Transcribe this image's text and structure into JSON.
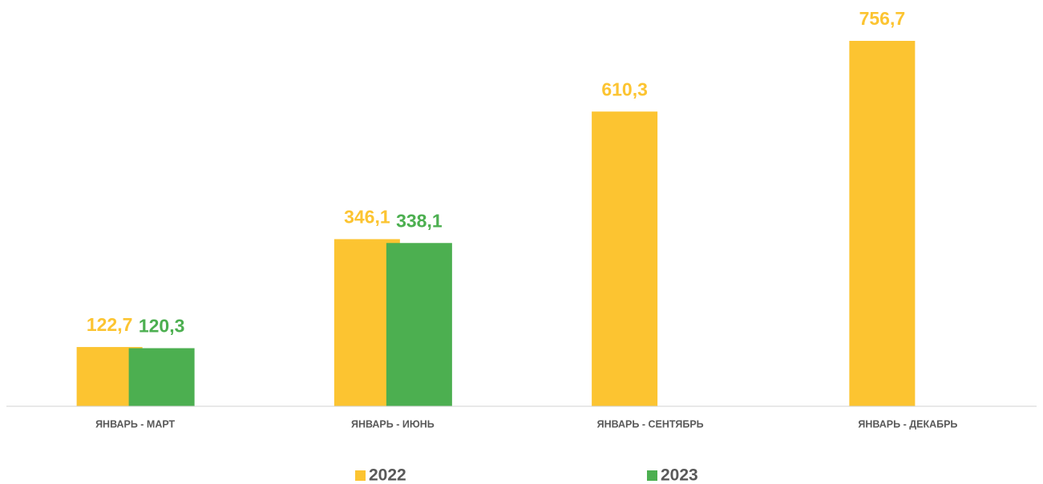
{
  "chart_data": {
    "type": "bar",
    "categories": [
      "ЯНВАРЬ - МАРТ",
      "ЯНВАРЬ - ИЮНЬ",
      "ЯНВАРЬ - СЕНТЯБРЬ",
      "ЯНВАРЬ - ДЕКАБРЬ"
    ],
    "series": [
      {
        "name": "2022",
        "color": "#fcc431",
        "values": [
          122.7,
          346.1,
          610.3,
          756.7
        ],
        "value_labels": [
          "122,7",
          "346,1",
          "610,3",
          "756,7"
        ]
      },
      {
        "name": "2023",
        "color": "#4caf50",
        "values": [
          120.3,
          338.1,
          null,
          null
        ],
        "value_labels": [
          "120,3",
          "338,1",
          null,
          null
        ]
      }
    ]
  }
}
